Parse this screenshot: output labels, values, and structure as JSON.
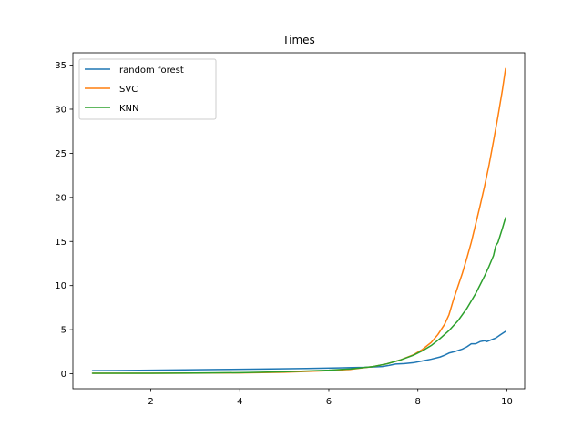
{
  "chart_data": {
    "type": "line",
    "title": "Times",
    "xlabel": "",
    "ylabel": "",
    "xlim": [
      0.25,
      10.4
    ],
    "ylim": [
      -1.7,
      36.4
    ],
    "xticks": [
      2,
      4,
      6,
      8,
      10
    ],
    "yticks": [
      0,
      5,
      10,
      15,
      20,
      25,
      30,
      35
    ],
    "grid": false,
    "legend_position": "top-left",
    "series": [
      {
        "name": "random forest",
        "color": "#1f77b4",
        "points": [
          [
            0.69,
            0.35
          ],
          [
            1.5,
            0.38
          ],
          [
            2.5,
            0.43
          ],
          [
            3.5,
            0.48
          ],
          [
            4.5,
            0.53
          ],
          [
            5.5,
            0.6
          ],
          [
            6.2,
            0.66
          ],
          [
            6.8,
            0.72
          ],
          [
            7.2,
            0.82
          ],
          [
            7.35,
            0.95
          ],
          [
            7.5,
            1.1
          ],
          [
            7.7,
            1.15
          ],
          [
            7.9,
            1.25
          ],
          [
            8.1,
            1.45
          ],
          [
            8.3,
            1.65
          ],
          [
            8.5,
            1.9
          ],
          [
            8.6,
            2.1
          ],
          [
            8.7,
            2.35
          ],
          [
            8.85,
            2.55
          ],
          [
            9.0,
            2.8
          ],
          [
            9.1,
            3.05
          ],
          [
            9.2,
            3.4
          ],
          [
            9.3,
            3.4
          ],
          [
            9.4,
            3.65
          ],
          [
            9.5,
            3.75
          ],
          [
            9.55,
            3.65
          ],
          [
            9.65,
            3.85
          ],
          [
            9.75,
            4.05
          ],
          [
            9.85,
            4.4
          ],
          [
            9.97,
            4.8
          ]
        ]
      },
      {
        "name": "SVC",
        "color": "#ff7f0e",
        "points": [
          [
            0.69,
            0.05
          ],
          [
            2.0,
            0.06
          ],
          [
            3.0,
            0.07
          ],
          [
            4.0,
            0.1
          ],
          [
            5.0,
            0.17
          ],
          [
            6.0,
            0.35
          ],
          [
            6.5,
            0.5
          ],
          [
            7.0,
            0.82
          ],
          [
            7.3,
            1.12
          ],
          [
            7.6,
            1.55
          ],
          [
            7.9,
            2.15
          ],
          [
            8.1,
            2.75
          ],
          [
            8.3,
            3.55
          ],
          [
            8.45,
            4.45
          ],
          [
            8.6,
            5.6
          ],
          [
            8.7,
            6.7
          ],
          [
            8.8,
            8.4
          ],
          [
            8.9,
            9.9
          ],
          [
            9.0,
            11.4
          ],
          [
            9.1,
            13.1
          ],
          [
            9.2,
            14.9
          ],
          [
            9.3,
            17.0
          ],
          [
            9.4,
            19.1
          ],
          [
            9.5,
            21.3
          ],
          [
            9.6,
            23.7
          ],
          [
            9.7,
            26.4
          ],
          [
            9.8,
            29.2
          ],
          [
            9.9,
            32.2
          ],
          [
            9.97,
            34.6
          ]
        ]
      },
      {
        "name": "KNN",
        "color": "#2ca02c",
        "points": [
          [
            0.69,
            0.05
          ],
          [
            2.0,
            0.06
          ],
          [
            3.0,
            0.08
          ],
          [
            4.0,
            0.12
          ],
          [
            5.0,
            0.22
          ],
          [
            6.0,
            0.4
          ],
          [
            6.5,
            0.55
          ],
          [
            7.0,
            0.82
          ],
          [
            7.3,
            1.12
          ],
          [
            7.6,
            1.55
          ],
          [
            7.9,
            2.1
          ],
          [
            8.1,
            2.6
          ],
          [
            8.3,
            3.2
          ],
          [
            8.5,
            4.0
          ],
          [
            8.7,
            4.9
          ],
          [
            8.9,
            6.0
          ],
          [
            9.1,
            7.4
          ],
          [
            9.3,
            9.1
          ],
          [
            9.5,
            11.1
          ],
          [
            9.6,
            12.2
          ],
          [
            9.7,
            13.4
          ],
          [
            9.75,
            14.5
          ],
          [
            9.8,
            14.9
          ],
          [
            9.85,
            15.7
          ],
          [
            9.9,
            16.5
          ],
          [
            9.97,
            17.7
          ]
        ]
      }
    ]
  }
}
